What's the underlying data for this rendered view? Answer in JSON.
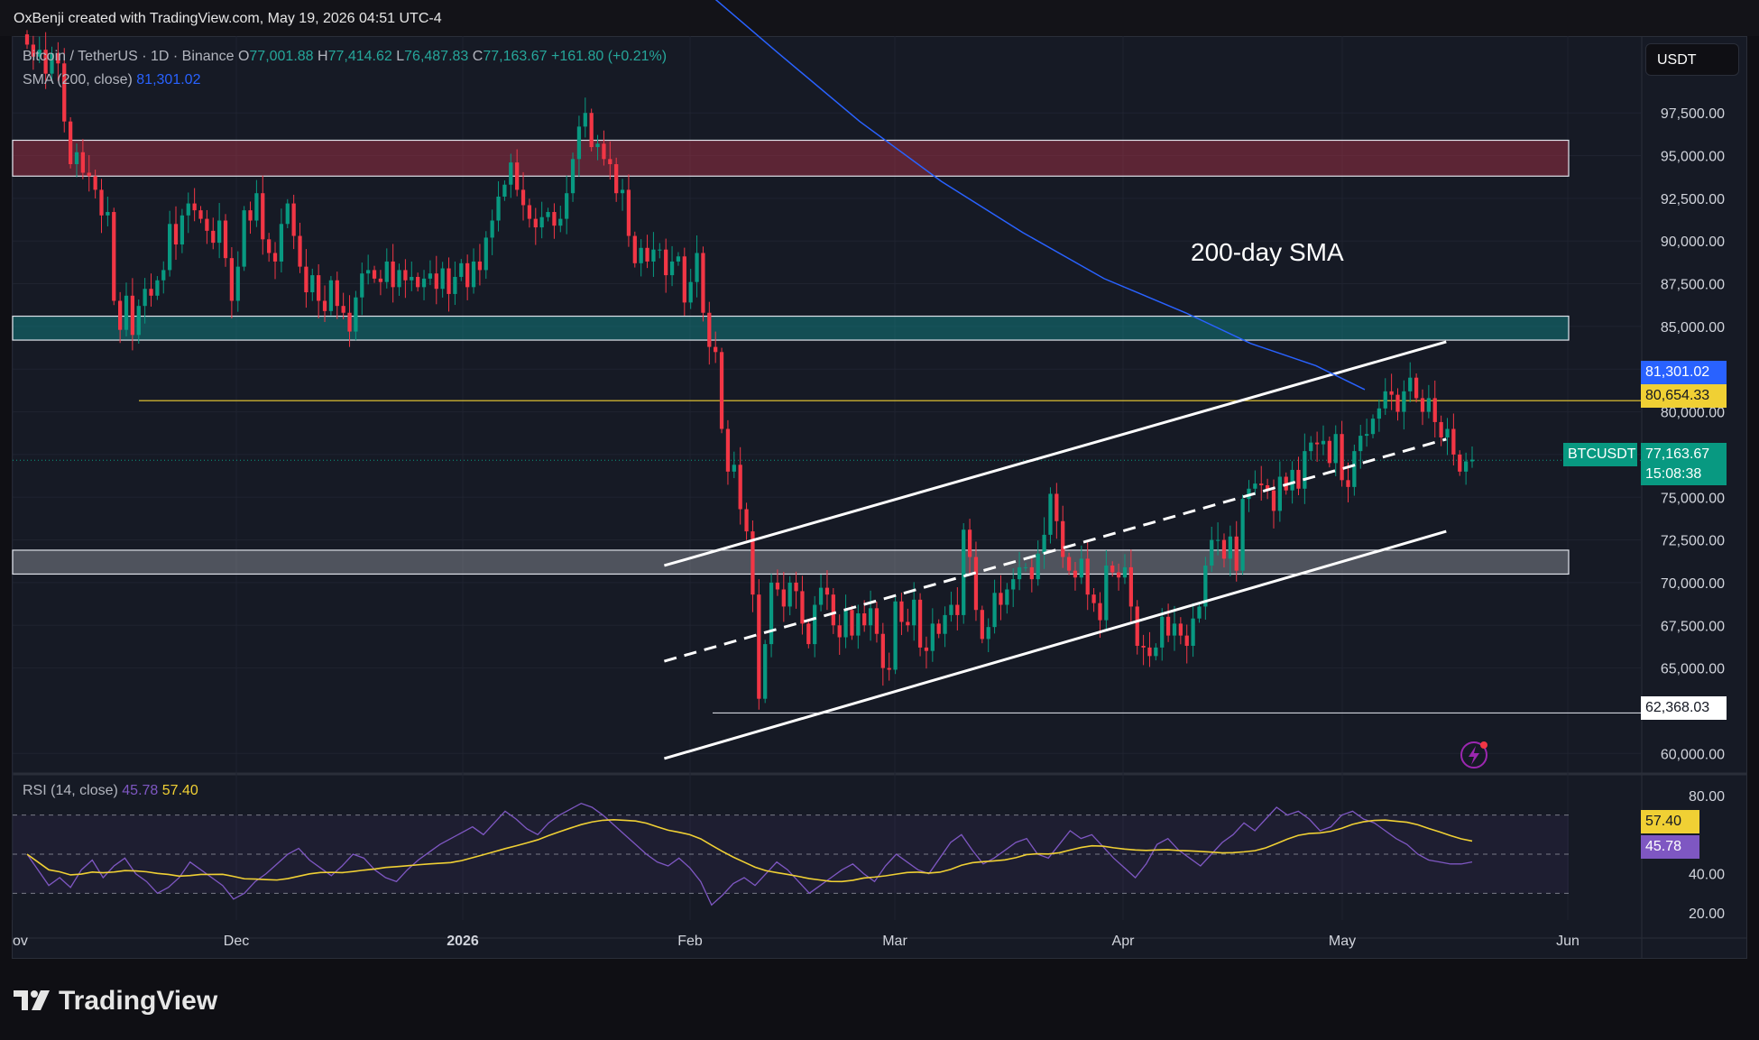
{
  "header": {
    "attribution": "OxBenji created with TradingView.com, May 19, 2026 04:51 UTC-4"
  },
  "legend": {
    "symbol": "Bitcoin / TetherUS · 1D · Binance",
    "o_label": "O",
    "o": "77,001.88",
    "h_label": "H",
    "h": "77,414.62",
    "l_label": "L",
    "l": "76,487.83",
    "c_label": "C",
    "c": "77,163.67",
    "change": "+161.80 (+0.21%)",
    "sma_label": "SMA (200, close)",
    "sma_value": "81,301.02"
  },
  "currency_button": "USDT",
  "annotation": "200-day SMA",
  "price_tags": {
    "sma": "81,301.02",
    "level": "80,654.33",
    "last_symbol": "BTCUSDT",
    "last_price": "77,163.67",
    "countdown": "15:08:38",
    "low": "62,368.03"
  },
  "rsi": {
    "label": "RSI (14, close)",
    "value": "45.78",
    "ma_value": "57.40",
    "tag_value": "45.78",
    "tag_ma": "57.40",
    "ticks": [
      "80.00",
      "40.00",
      "20.00"
    ],
    "tick_values": [
      80,
      40,
      20
    ],
    "upper": 70,
    "middle": 50,
    "lower": 30,
    "line_color": "#7e57c2",
    "ma_color": "#f0d034",
    "series": [
      50,
      42,
      34,
      38,
      33,
      42,
      47,
      38,
      44,
      48,
      40,
      36,
      30,
      33,
      38,
      46,
      42,
      38,
      34,
      27,
      30,
      36,
      40,
      45,
      50,
      53,
      47,
      43,
      39,
      44,
      50,
      48,
      42,
      38,
      36,
      42,
      47,
      51,
      55,
      58,
      61,
      64,
      60,
      66,
      72,
      68,
      63,
      60,
      66,
      70,
      73,
      76,
      74,
      70,
      65,
      60,
      55,
      50,
      46,
      44,
      48,
      43,
      36,
      24,
      29,
      35,
      38,
      34,
      40,
      46,
      42,
      36,
      30,
      34,
      38,
      42,
      45,
      40,
      36,
      44,
      50,
      46,
      42,
      40,
      48,
      56,
      60,
      52,
      45,
      48,
      52,
      56,
      58,
      50,
      48,
      55,
      62,
      58,
      60,
      54,
      48,
      43,
      38,
      45,
      55,
      58,
      52,
      48,
      44,
      50,
      56,
      60,
      66,
      62,
      68,
      74,
      70,
      72,
      68,
      62,
      64,
      70,
      72,
      68,
      66,
      62,
      58,
      55,
      50,
      47,
      46,
      45,
      45,
      46
    ]
  },
  "footer": {
    "brand": "TradingView"
  },
  "chart_data": {
    "type": "candlestick",
    "title": "Bitcoin / TetherUS · 1D · Binance",
    "x_ticks": [
      "ov",
      "Dec",
      "2026",
      "Feb",
      "Mar",
      "Apr",
      "May",
      "Jun"
    ],
    "y_ticks": [
      "97,500.00",
      "95,000.00",
      "92,500.00",
      "90,000.00",
      "87,500.00",
      "85,000.00",
      "82,500.00",
      "80,000.00",
      "77,500.00",
      "75,000.00",
      "72,500.00",
      "70,000.00",
      "67,500.00",
      "65,000.00",
      "60,000.00"
    ],
    "y_tick_values": [
      97500,
      95000,
      92500,
      90000,
      87500,
      85000,
      82500,
      80000,
      77500,
      75000,
      72500,
      70000,
      67500,
      65000,
      60000
    ],
    "ylim": [
      58800,
      102000
    ],
    "dates": [
      "2025-11-01",
      "2025-12-01",
      "2026-01-01",
      "2026-02-01",
      "2026-03-01",
      "2026-04-01",
      "2026-05-01",
      "2026-06-01"
    ],
    "closes": [
      101500,
      100800,
      101200,
      99800,
      101000,
      100400,
      97000,
      94500,
      95200,
      94000,
      93800,
      93000,
      91500,
      91700,
      86500,
      84800,
      86800,
      84500,
      86200,
      87200,
      86800,
      87700,
      88300,
      91000,
      89800,
      91500,
      92200,
      91800,
      91300,
      90600,
      89900,
      91200,
      89000,
      86500,
      88500,
      91800,
      91200,
      92800,
      90100,
      89300,
      88800,
      91000,
      92200,
      90300,
      88500,
      87000,
      88000,
      86500,
      85900,
      87700,
      86200,
      85800,
      84700,
      86700,
      88100,
      88300,
      87800,
      87600,
      88800,
      87300,
      88300,
      87700,
      87900,
      87300,
      87800,
      88100,
      87200,
      88400,
      86900,
      87900,
      88700,
      87300,
      88800,
      88300,
      90200,
      91200,
      92600,
      93300,
      94600,
      93000,
      92100,
      91300,
      90800,
      91400,
      91700,
      90900,
      91300,
      92800,
      94800,
      96700,
      97500,
      95500,
      95700,
      94800,
      94500,
      92800,
      93000,
      90300,
      88700,
      89600,
      88800,
      89500,
      89500,
      88000,
      88800,
      89100,
      86400,
      87600,
      89300,
      85800,
      83800,
      83500,
      79000,
      76500,
      76900,
      74300,
      73000,
      69300,
      63200,
      66400,
      70000,
      69600,
      68600,
      70000,
      69500,
      67600,
      66400,
      68700,
      69700,
      69300,
      67500,
      66800,
      68400,
      66900,
      68200,
      67500,
      68500,
      67000,
      65000,
      64900,
      68900,
      67700,
      67500,
      69000,
      66200,
      66000,
      67600,
      67000,
      68100,
      68700,
      68100,
      73100,
      71500,
      68400,
      66700,
      67400,
      69400,
      68700,
      69600,
      70200,
      70900,
      70900,
      70200,
      71700,
      72800,
      75200,
      73600,
      71500,
      70700,
      70300,
      71400,
      69300,
      68800,
      67800,
      71000,
      70600,
      70300,
      70900,
      68600,
      66300,
      66200,
      65700,
      66200,
      68000,
      66900,
      67600,
      66900,
      66300,
      67900,
      68600,
      71000,
      72500,
      72500,
      71400,
      72700,
      70700,
      74900,
      75500,
      75800,
      75700,
      75400,
      74200,
      76200,
      75400,
      76600,
      75500,
      77700,
      78200,
      78100,
      78300,
      77000,
      78700,
      76000,
      75600,
      77700,
      78600,
      78700,
      79600,
      80200,
      81200,
      81000,
      80000,
      81200,
      82000,
      80800,
      80000,
      80800,
      79400,
      78500,
      79000,
      77500,
      76500,
      77100,
      77200
    ],
    "sma200": [
      [
        0.421,
        105000
      ],
      [
        0.47,
        101000
      ],
      [
        0.52,
        97000
      ],
      [
        0.57,
        93500
      ],
      [
        0.62,
        90500
      ],
      [
        0.67,
        87800
      ],
      [
        0.72,
        85800
      ],
      [
        0.76,
        84000
      ],
      [
        0.8,
        82700
      ],
      [
        0.83,
        81301
      ]
    ],
    "zones": [
      {
        "name": "resistance-zone",
        "y_low": 93800,
        "y_high": 95900,
        "color": "#b2334a"
      },
      {
        "name": "support-zone-upper",
        "y_low": 84200,
        "y_high": 85600,
        "color": "#0f8d8d"
      },
      {
        "name": "demand-zone",
        "y_low": 70500,
        "y_high": 71900,
        "color": "#9598a1"
      }
    ],
    "horizontal_levels": [
      {
        "name": "level-80654",
        "value": 80654.33,
        "color": "#f0d034"
      },
      {
        "name": "level-62368",
        "value": 62368.03,
        "color": "#d1d4dc"
      }
    ],
    "channel": {
      "upper": [
        [
          0.4,
          71000
        ],
        [
          0.88,
          84100
        ]
      ],
      "lower": [
        [
          0.4,
          59700
        ],
        [
          0.88,
          73000
        ]
      ],
      "middle": [
        [
          0.4,
          65400
        ],
        [
          0.88,
          78400
        ]
      ]
    },
    "last_price_line": 77163.67,
    "up_color": "#089981",
    "down_color": "#f23645",
    "sma_color": "#2962ff"
  }
}
